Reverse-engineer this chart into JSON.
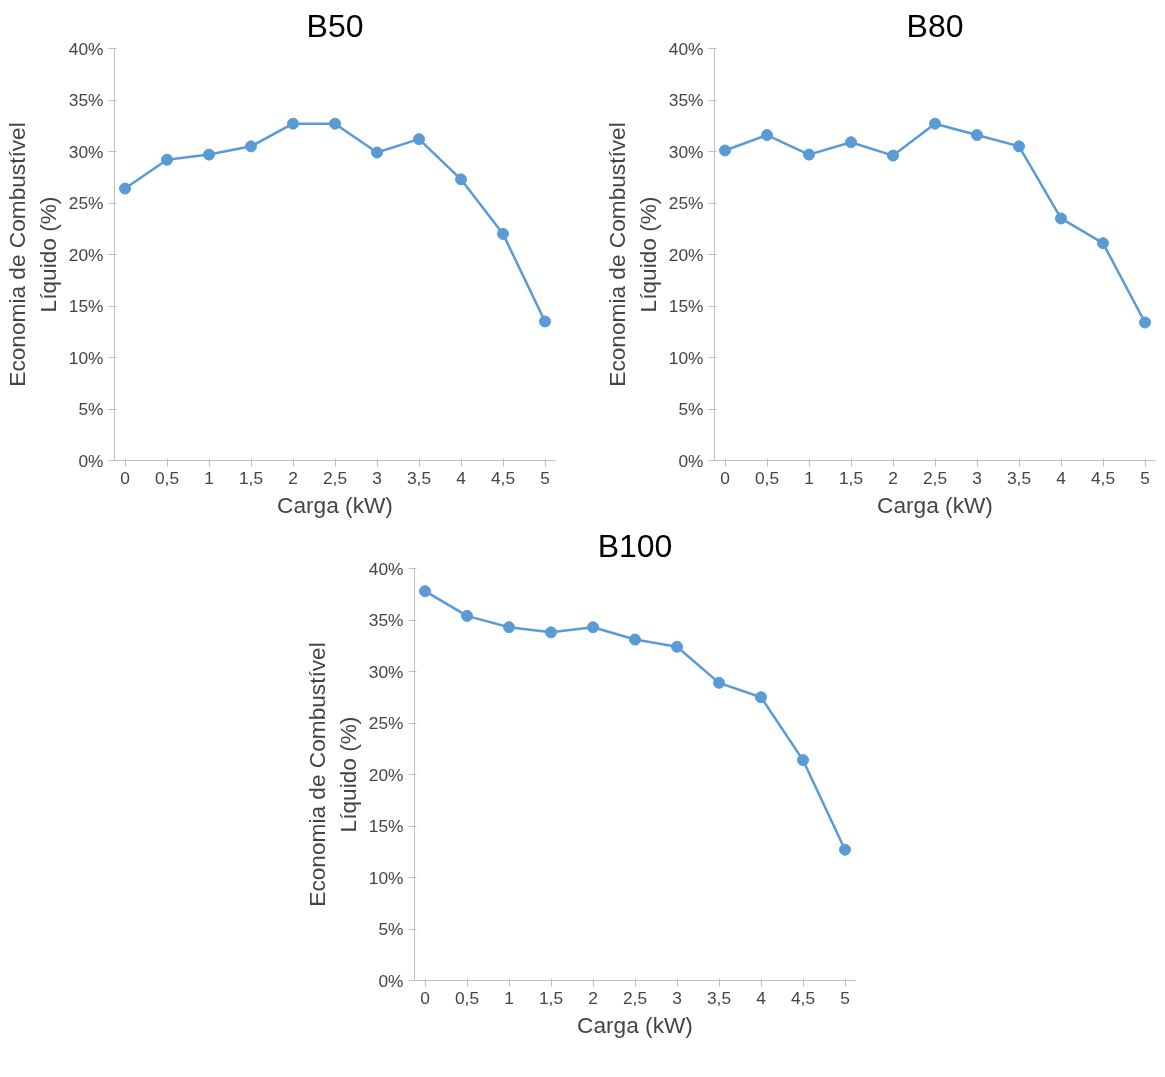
{
  "chart_data": [
    {
      "type": "line",
      "title": "B50",
      "xlabel": "Carga (kW)",
      "ylabel": "Economia de Combustível\nLíquido (%)",
      "categories": [
        "0",
        "0,5",
        "1",
        "1,5",
        "2",
        "2,5",
        "3",
        "3,5",
        "4",
        "4,5",
        "5"
      ],
      "ylim": [
        0,
        40
      ],
      "yticks": [
        {
          "value": 0,
          "label": "0%"
        },
        {
          "value": 5,
          "label": "5%"
        },
        {
          "value": 10,
          "label": "10%"
        },
        {
          "value": 15,
          "label": "15%"
        },
        {
          "value": 20,
          "label": "20%"
        },
        {
          "value": 25,
          "label": "25%"
        },
        {
          "value": 30,
          "label": "30%"
        },
        {
          "value": 35,
          "label": "35%"
        },
        {
          "value": 40,
          "label": "40%"
        }
      ],
      "grid": false,
      "marker": "circle",
      "line_style": "solid",
      "series": [
        {
          "color": "#5b9bd5",
          "values": [
            26.4,
            29.2,
            29.7,
            30.5,
            32.7,
            32.7,
            29.9,
            31.2,
            27.3,
            22.0,
            13.5
          ]
        }
      ]
    },
    {
      "type": "line",
      "title": "B80",
      "xlabel": "Carga (kW)",
      "ylabel": "Economia de Combustível\nLíquido (%)",
      "categories": [
        "0",
        "0,5",
        "1",
        "1,5",
        "2",
        "2,5",
        "3",
        "3,5",
        "4",
        "4,5",
        "5"
      ],
      "ylim": [
        0,
        40
      ],
      "yticks": [
        {
          "value": 0,
          "label": "0%"
        },
        {
          "value": 5,
          "label": "5%"
        },
        {
          "value": 10,
          "label": "10%"
        },
        {
          "value": 15,
          "label": "15%"
        },
        {
          "value": 20,
          "label": "20%"
        },
        {
          "value": 25,
          "label": "25%"
        },
        {
          "value": 30,
          "label": "30%"
        },
        {
          "value": 35,
          "label": "35%"
        },
        {
          "value": 40,
          "label": "40%"
        }
      ],
      "grid": false,
      "marker": "circle",
      "line_style": "solid",
      "series": [
        {
          "color": "#5b9bd5",
          "values": [
            30.1,
            31.6,
            29.7,
            30.9,
            29.6,
            32.7,
            31.6,
            30.5,
            23.5,
            21.1,
            13.4
          ]
        }
      ]
    },
    {
      "type": "line",
      "title": "B100",
      "xlabel": "Carga (kW)",
      "ylabel": "Economia de Combustível\nLíquido (%)",
      "categories": [
        "0",
        "0,5",
        "1",
        "1,5",
        "2",
        "2,5",
        "3",
        "3,5",
        "4",
        "4,5",
        "5"
      ],
      "ylim": [
        0,
        40
      ],
      "yticks": [
        {
          "value": 0,
          "label": "0%"
        },
        {
          "value": 5,
          "label": "5%"
        },
        {
          "value": 10,
          "label": "10%"
        },
        {
          "value": 15,
          "label": "15%"
        },
        {
          "value": 20,
          "label": "20%"
        },
        {
          "value": 25,
          "label": "25%"
        },
        {
          "value": 30,
          "label": "30%"
        },
        {
          "value": 35,
          "label": "35%"
        },
        {
          "value": 40,
          "label": "40%"
        }
      ],
      "grid": false,
      "marker": "circle",
      "line_style": "solid",
      "series": [
        {
          "color": "#5b9bd5",
          "values": [
            37.8,
            35.4,
            34.3,
            33.8,
            34.3,
            33.1,
            32.4,
            28.9,
            27.5,
            21.4,
            12.7
          ]
        }
      ]
    }
  ]
}
